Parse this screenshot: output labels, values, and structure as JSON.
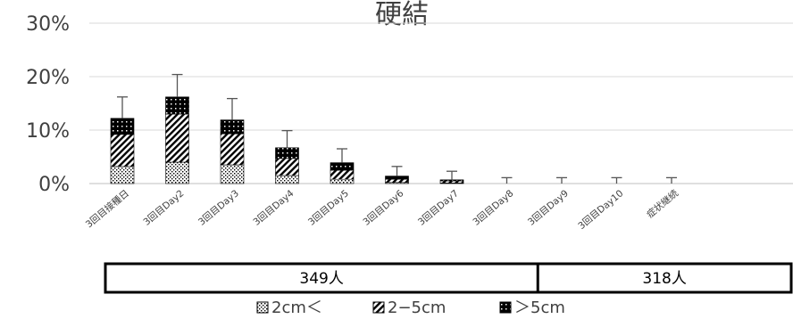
{
  "chart_data": {
    "type": "bar",
    "stacked": true,
    "title": "硬結",
    "y_ticks": [
      "0%",
      "10%",
      "20%",
      "30%"
    ],
    "ylim": [
      0,
      30
    ],
    "grid": true,
    "categories": [
      "3回目接種日",
      "3回目Day2",
      "3回目Day3",
      "3回目Day4",
      "3回目Day5",
      "3回目Day6",
      "3回目Day7",
      "3回目Day8",
      "3回目Day9",
      "3回目Day10",
      "症状継続"
    ],
    "series": [
      {
        "name": "2cm＜",
        "values": [
          3.2,
          4.0,
          3.5,
          1.5,
          0.8,
          0.2,
          0.1,
          0,
          0,
          0,
          0
        ]
      },
      {
        "name": "2−5cm",
        "values": [
          6.0,
          9.0,
          5.8,
          3.2,
          1.7,
          0.6,
          0.4,
          0,
          0,
          0,
          0
        ]
      },
      {
        "name": "＞5cm",
        "values": [
          3.0,
          3.2,
          2.6,
          2.0,
          1.4,
          0.6,
          0.2,
          0,
          0,
          0,
          0
        ]
      }
    ],
    "error_upper": [
      4.0,
      4.2,
      4.0,
      3.2,
      2.6,
      1.8,
      1.6,
      1.1,
      1.1,
      1.1,
      1.1
    ],
    "groups": [
      {
        "label": "349人",
        "span": [
          0,
          7
        ]
      },
      {
        "label": "318人",
        "span": [
          8,
          10
        ]
      }
    ],
    "legend_position": "bottom"
  }
}
